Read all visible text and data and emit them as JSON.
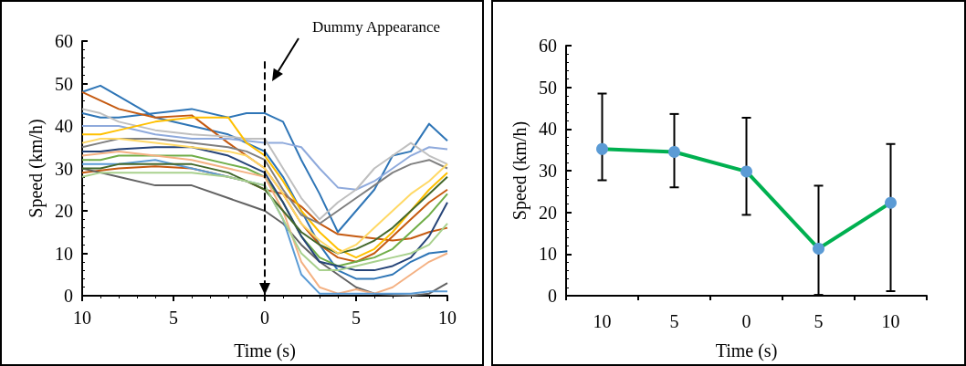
{
  "chart_data": [
    {
      "type": "line",
      "xlabel": "Time (s)",
      "ylabel": "Speed (km/h)",
      "marker": "none",
      "grid": false,
      "x": [
        -10,
        -9,
        -8,
        -6,
        -4,
        -2,
        -1,
        0,
        1,
        2,
        3,
        4,
        5,
        6,
        7,
        8,
        9,
        10
      ],
      "xlim": [
        -10,
        10
      ],
      "xticks": [
        {
          "value": -10,
          "label": "10"
        },
        {
          "value": -5,
          "label": "5"
        },
        0,
        5,
        10
      ],
      "ylim": [
        0,
        60
      ],
      "yticks": [
        0,
        10,
        20,
        30,
        40,
        50,
        60
      ],
      "ref_lines": [
        {
          "axis": "x",
          "value": 0,
          "label": "Dummy Appearance",
          "line_style": "dashed",
          "color": "#000000"
        }
      ],
      "series": [
        {
          "color": "#2e75b6",
          "values": [
            48,
            49.5,
            47,
            42,
            40,
            38,
            36,
            34,
            28,
            20,
            12,
            6,
            4,
            4,
            5,
            8,
            10,
            10.5
          ]
        },
        {
          "color": "#2e75b6",
          "values": [
            43,
            42,
            42,
            43,
            44,
            42,
            43,
            43,
            41,
            32,
            24,
            15,
            20,
            25,
            33,
            34,
            40.5,
            36.5
          ]
        },
        {
          "color": "#c55a11",
          "values": [
            48,
            46,
            44,
            42,
            42.5,
            36,
            33,
            30,
            24,
            17,
            12,
            9,
            8,
            10,
            14,
            18,
            22,
            25
          ]
        },
        {
          "color": "#8faadc",
          "values": [
            40,
            40,
            40,
            38,
            37,
            37,
            36.5,
            36,
            36,
            35,
            30,
            25.5,
            25,
            27,
            30,
            33,
            35,
            34.5
          ]
        },
        {
          "color": "#c55a11",
          "values": [
            29,
            29.5,
            30,
            30.5,
            30,
            28,
            27,
            25,
            24,
            21,
            17,
            14.5,
            14,
            13.5,
            13,
            13.5,
            15,
            16
          ]
        },
        {
          "color": "#636363",
          "values": [
            30,
            29,
            28,
            26,
            26,
            23,
            21.5,
            20,
            17,
            12,
            8,
            5,
            2,
            0.5,
            0.2,
            0,
            0.5,
            3
          ]
        },
        {
          "color": "#bfbfbf",
          "values": [
            44,
            43,
            41,
            39,
            38,
            37.5,
            37,
            37,
            30,
            23,
            18,
            22,
            25,
            30,
            33,
            36,
            33,
            31
          ]
        },
        {
          "color": "#ffc000",
          "values": [
            38,
            38,
            39,
            41,
            42,
            42,
            36,
            33,
            27,
            20,
            15,
            11,
            9,
            11,
            15,
            20,
            25,
            29
          ]
        },
        {
          "color": "#70ad47",
          "values": [
            32,
            32,
            33,
            33,
            33,
            31,
            30,
            28,
            22,
            14,
            9,
            7,
            8,
            9,
            11,
            15,
            19,
            24
          ]
        },
        {
          "color": "#f4b183",
          "values": [
            33,
            33.5,
            34,
            33,
            32,
            30,
            29,
            28,
            20,
            8,
            2,
            0.5,
            1.5,
            0.5,
            2,
            5,
            8,
            10
          ]
        },
        {
          "color": "#5b9bd5",
          "values": [
            31,
            31,
            31,
            32,
            30,
            28,
            27,
            26,
            18,
            5,
            0.5,
            0.5,
            0.5,
            0.5,
            0.5,
            0.5,
            1,
            1
          ]
        },
        {
          "color": "#7f7f7f",
          "values": [
            35,
            36,
            37,
            37,
            36,
            35,
            34,
            32,
            25,
            19,
            17,
            20,
            23,
            26,
            29,
            31,
            32,
            30
          ]
        },
        {
          "color": "#264478",
          "values": [
            34,
            34,
            34.5,
            35,
            35,
            33,
            31,
            29,
            22,
            14,
            8,
            7,
            6,
            6,
            7,
            9,
            14,
            22
          ]
        },
        {
          "color": "#43682b",
          "values": [
            30,
            30,
            31,
            31,
            31,
            29,
            27,
            25,
            20,
            15,
            12,
            10,
            11,
            13,
            16,
            20,
            24,
            28
          ]
        },
        {
          "color": "#ffd966",
          "values": [
            36,
            37,
            37,
            36,
            35,
            34,
            33,
            30,
            24,
            17,
            13,
            10,
            12,
            16,
            20,
            24,
            27,
            31
          ]
        },
        {
          "color": "#a9d18e",
          "values": [
            28,
            29,
            29,
            29,
            29,
            28,
            27,
            26,
            18,
            10,
            6,
            6,
            7,
            8,
            9,
            10,
            12,
            17
          ]
        }
      ]
    },
    {
      "type": "line",
      "xlabel": "Time (s)",
      "ylabel": "Speed (km/h)",
      "marker": "circle",
      "grid": false,
      "categories": [
        "10",
        "5",
        "0",
        "5",
        "10"
      ],
      "ylim": [
        0,
        60
      ],
      "yticks": [
        0,
        10,
        20,
        30,
        40,
        50,
        60
      ],
      "series": [
        {
          "color": "#00b050",
          "colors": [
            "#5b9bd5",
            "#5b9bd5",
            "#5b9bd5",
            "#5b9bd5",
            "#5b9bd5"
          ],
          "values": [
            35.2,
            34.5,
            29.8,
            11.3,
            22.3
          ],
          "errors": [
            [
              27.7,
              48.5
            ],
            [
              26.0,
              43.6
            ],
            [
              19.4,
              42.7
            ],
            [
              0.2,
              26.4
            ],
            [
              1.1,
              36.4
            ]
          ]
        }
      ]
    }
  ]
}
